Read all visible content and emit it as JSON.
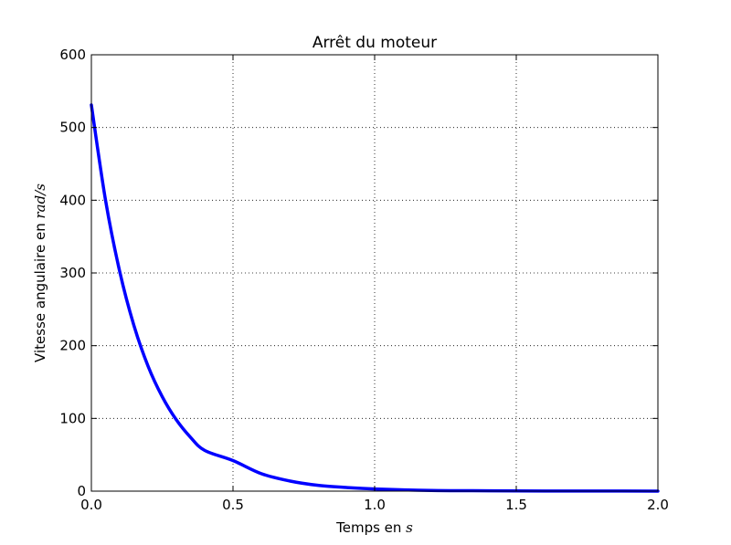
{
  "chart_data": {
    "type": "line",
    "title": "Arrêt du moteur",
    "xlabel": {
      "text": "Temps en ",
      "unit": "s"
    },
    "ylabel": {
      "text": "Vitesse angulaire en ",
      "unit": "rad/s"
    },
    "xlim": [
      0,
      2.0
    ],
    "ylim": [
      0,
      600
    ],
    "xticks": [
      "0.0",
      "0.5",
      "1.0",
      "1.5",
      "2.0"
    ],
    "yticks": [
      "0",
      "100",
      "200",
      "300",
      "400",
      "500",
      "600"
    ],
    "grid": true,
    "series": [
      {
        "color": "#0000ff",
        "x": [
          0.0,
          0.05,
          0.1,
          0.15,
          0.2,
          0.25,
          0.3,
          0.35,
          0.4,
          0.5,
          0.6,
          0.7,
          0.8,
          0.9,
          1.0,
          1.2,
          1.4,
          1.6,
          1.8,
          2.0
        ],
        "y": [
          531,
          400,
          302,
          228,
          172,
          130,
          98,
          74,
          56,
          42,
          24,
          14,
          8,
          5,
          3,
          1,
          0.5,
          0.2,
          0.1,
          0.05
        ]
      }
    ]
  }
}
